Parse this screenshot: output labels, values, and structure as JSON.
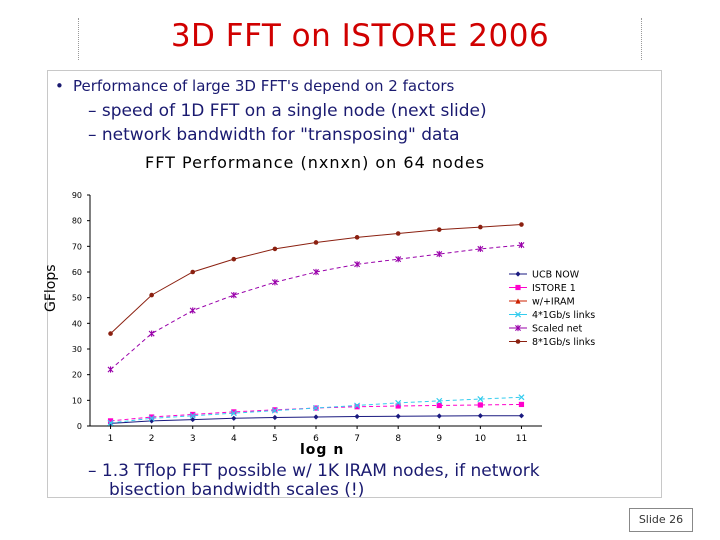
{
  "slide": {
    "title": "3D FFT on ISTORE 2006",
    "bullet": "Performance of large 3D FFT's depend on 2 factors",
    "sub1": "– speed of 1D FFT on a single node (next slide)",
    "sub2": "– network bandwidth for \"transposing\" data",
    "sub3_line1": "– 1.3 Tflop FFT possible w/ 1K IRAM nodes, if network",
    "sub3_line2": "bisection bandwidth scales (!)",
    "slide_number": "Slide 26"
  },
  "chart_data": {
    "type": "line",
    "title": "FFT Performance (nxnxn) on 64 nodes",
    "xlabel": "log n",
    "ylabel": "GFlops",
    "x": [
      1,
      2,
      3,
      4,
      5,
      6,
      7,
      8,
      9,
      10,
      11
    ],
    "ylim": [
      0,
      90
    ],
    "yticks": [
      0,
      10,
      20,
      30,
      40,
      50,
      60,
      70,
      80,
      90
    ],
    "grid": false,
    "legend_position": "right",
    "series": [
      {
        "name": "UCB NOW",
        "color": "#1a1a80",
        "marker": "diamond",
        "values": [
          1,
          2,
          2.5,
          3,
          3.3,
          3.5,
          3.7,
          3.8,
          3.9,
          4,
          4
        ]
      },
      {
        "name": "ISTORE 1",
        "color": "#ff00cc",
        "marker": "square",
        "values": [
          2,
          3.5,
          4.5,
          5.5,
          6.3,
          7,
          7.5,
          7.8,
          8,
          8.2,
          8.4
        ]
      },
      {
        "name": "w/+IRAM",
        "color": "#cc2200",
        "marker": "triangle",
        "values": [
          null,
          null,
          null,
          null,
          null,
          null,
          null,
          null,
          null,
          null,
          null
        ]
      },
      {
        "name": "4*1Gb/s links",
        "color": "#33ccee",
        "marker": "x",
        "values": [
          1.2,
          3,
          4,
          5,
          6,
          7,
          8,
          9,
          9.8,
          10.5,
          11.2
        ]
      },
      {
        "name": "Scaled net",
        "color": "#9900aa",
        "marker": "star",
        "values": [
          22,
          36,
          45,
          51,
          56,
          60,
          63,
          65,
          67,
          69,
          70.5
        ]
      },
      {
        "name": "8*1Gb/s links",
        "color": "#8b2010",
        "marker": "circle",
        "values": [
          36,
          51,
          60,
          65,
          69,
          71.5,
          73.5,
          75,
          76.5,
          77.5,
          78.5
        ]
      }
    ]
  }
}
